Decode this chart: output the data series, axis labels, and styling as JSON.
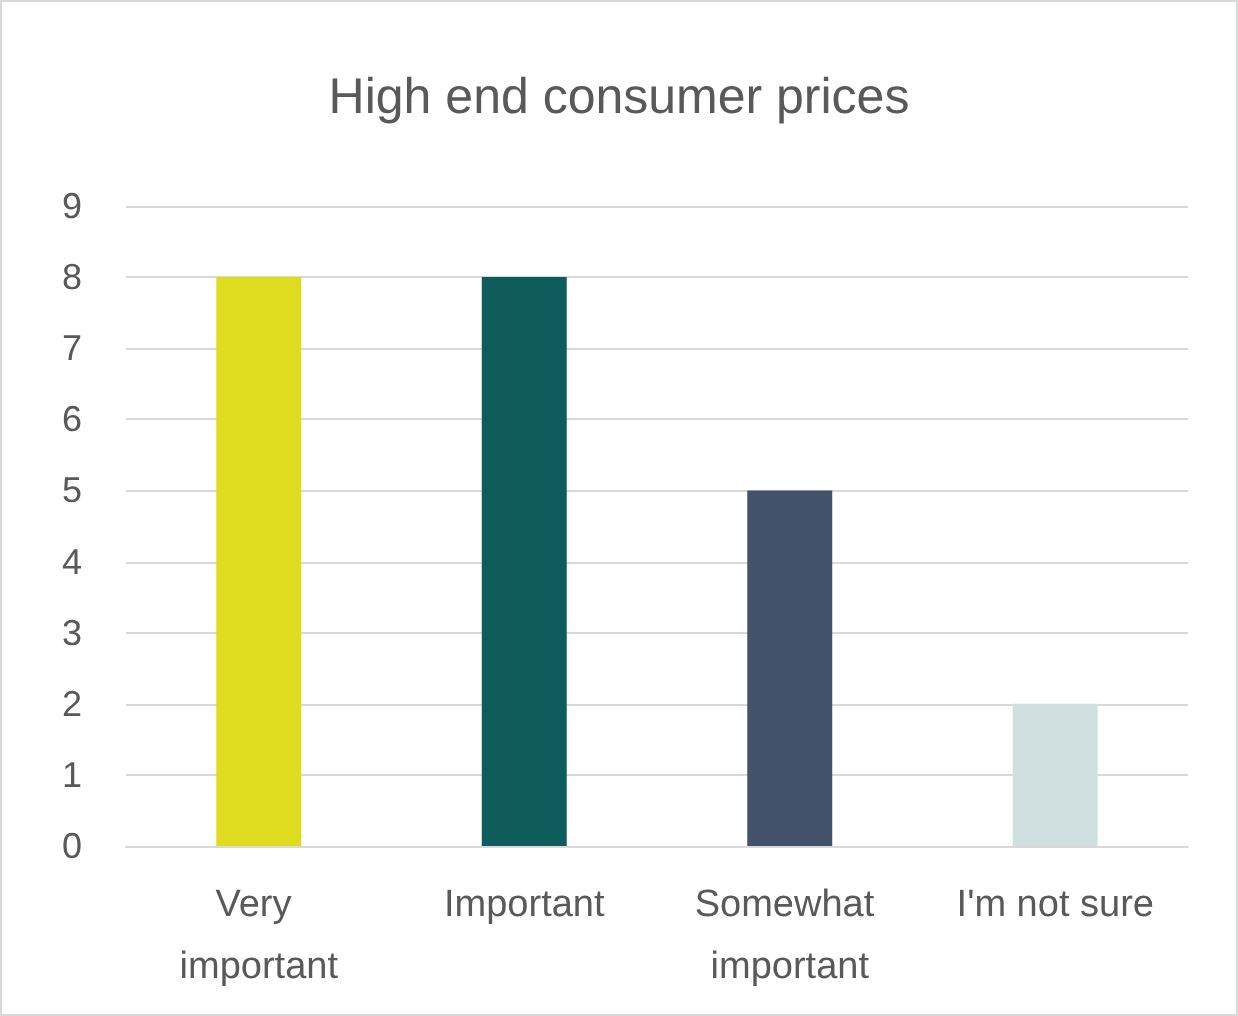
{
  "chart_data": {
    "type": "bar",
    "title": "High end consumer prices",
    "categories": [
      "Very important",
      "Important",
      "Somewhat important",
      "I'm not sure"
    ],
    "values": [
      8,
      8,
      5,
      2
    ],
    "colors": [
      "#dfdc1f",
      "#0f5c5c",
      "#42526a",
      "#d0dfdf"
    ],
    "ylim": [
      0,
      9
    ],
    "yticks": [
      0,
      1,
      2,
      3,
      4,
      5,
      6,
      7,
      8,
      9
    ],
    "grid": "y"
  }
}
